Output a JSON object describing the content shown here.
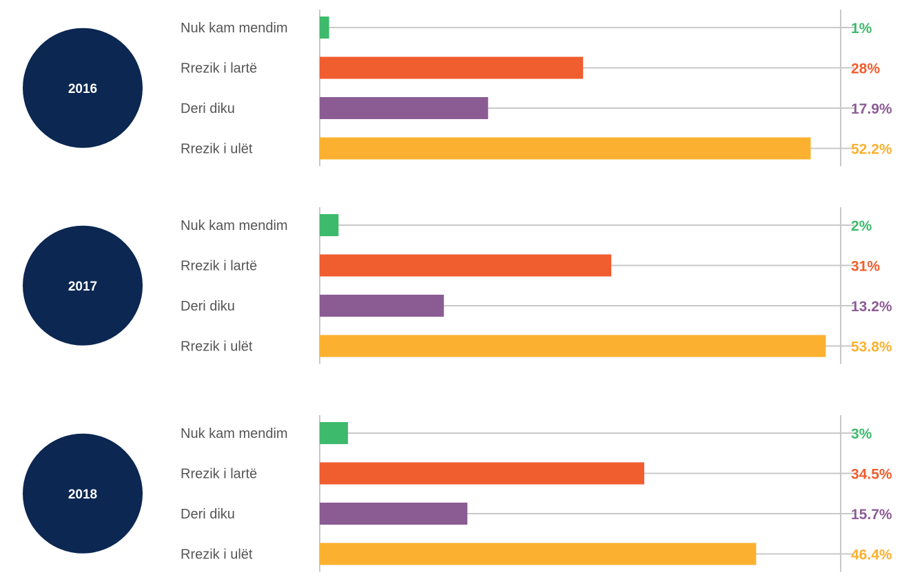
{
  "chart_data": {
    "type": "bar",
    "orientation": "horizontal",
    "value_unit": "%",
    "xlim": [
      0,
      55
    ],
    "colors": {
      "Nuk kam mendim": "#3dba6b",
      "Rrezik i lartë": "#f05d2e",
      "Deri diku": "#8b5c94",
      "Rrezik i ulët": "#fbb12f"
    },
    "panel_color": "#0b2752",
    "panels": [
      {
        "year": "2016",
        "categories": [
          "Nuk kam mendim",
          "Rrezik i lartë",
          "Deri diku",
          "Rrezik i ulët"
        ],
        "values": [
          1,
          28,
          17.9,
          52.2
        ],
        "value_labels": [
          "1%",
          "28%",
          "17.9%",
          "52.2%"
        ]
      },
      {
        "year": "2017",
        "categories": [
          "Nuk kam mendim",
          "Rrezik i lartë",
          "Deri diku",
          "Rrezik i ulët"
        ],
        "values": [
          2,
          31,
          13.2,
          53.8
        ],
        "value_labels": [
          "2%",
          "31%",
          "13.2%",
          "53.8%"
        ]
      },
      {
        "year": "2018",
        "categories": [
          "Nuk kam mendim",
          "Rrezik i lartë",
          "Deri diku",
          "Rrezik i ulët"
        ],
        "values": [
          3,
          34.5,
          15.7,
          46.4
        ],
        "value_labels": [
          "3%",
          "34.5%",
          "15.7%",
          "46.4%"
        ]
      }
    ]
  }
}
